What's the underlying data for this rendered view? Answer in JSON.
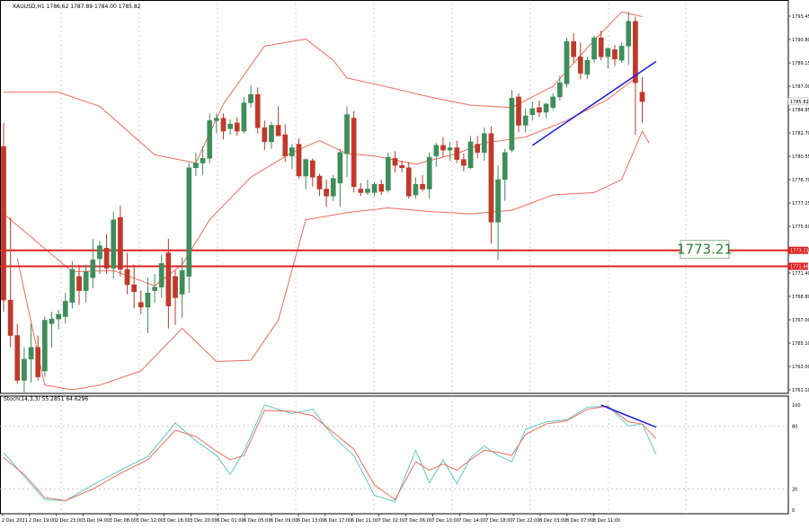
{
  "header": {
    "symbol_info": "XAUUSD,H1  1786.62 1787.89 1784.00 1785.82"
  },
  "stoch_header": {
    "text": "Stoch(14,3,3) 55.2851 64.6296"
  },
  "price_axis": {
    "labels": [
      "1793.45",
      "1790.80",
      "1789.15",
      "1787.00",
      "1784.85",
      "1782.70",
      "1780.55",
      "1778.70",
      "1777.25",
      "1775.60",
      "1773.00",
      "1771.40",
      "1768.80",
      "1767.00",
      "1765.10",
      "1763.00",
      "1761.10"
    ]
  },
  "current_price_label": "1785.82",
  "levels": [
    {
      "label": "1773.21",
      "axis_label": "1773.21"
    },
    {
      "label": "",
      "axis_label": "1771.86"
    }
  ],
  "stoch_axis": {
    "labels": [
      "100",
      "80",
      "20",
      "0"
    ]
  },
  "time_axis": {
    "labels": [
      "2 Dec 2021",
      "2 Dec 19:00",
      "2 Dec 23:00",
      "3 Dec 04:00",
      "3 Dec 08:00",
      "3 Dec 12:00",
      "3 Dec 16:00",
      "3 Dec 20:00",
      "6 Dec 01:00",
      "6 Dec 05:00",
      "6 Dec 09:00",
      "6 Dec 13:00",
      "6 Dec 17:00",
      "6 Dec 21:00",
      "7 Dec 02:00",
      "7 Dec 06:00",
      "7 Dec 10:00",
      "7 Dec 14:00",
      "7 Dec 18:00",
      "7 Dec 22:00",
      "8 Dec 03:00",
      "8 Dec 07:00",
      "8 Dec 11:00"
    ]
  },
  "colors": {
    "bull": "#3f8d5a",
    "bear": "#c0392b",
    "band": "#f06b5b",
    "level": "#e02020",
    "trend": "#1a1ae6",
    "stoch_main": "#5cc8c8",
    "stoch_signal": "#f06b5b",
    "level_box_text": "#2e7d32"
  },
  "chart_data": {
    "type": "candlestick",
    "title": "XAUUSD,H1",
    "ylim": [
      1761.1,
      1794.1
    ],
    "candles": [
      {
        "o": 1782,
        "h": 1784,
        "l": 1768,
        "c": 1769
      },
      {
        "o": 1769,
        "h": 1776,
        "l": 1765,
        "c": 1766
      },
      {
        "o": 1766,
        "h": 1767,
        "l": 1761.9,
        "c": 1762.2
      },
      {
        "o": 1762.2,
        "h": 1765,
        "l": 1761.2,
        "c": 1764
      },
      {
        "o": 1764,
        "h": 1767,
        "l": 1762,
        "c": 1765
      },
      {
        "o": 1765,
        "h": 1766,
        "l": 1762.2,
        "c": 1762.5
      },
      {
        "o": 1763,
        "h": 1767.6,
        "l": 1762.5,
        "c": 1767.3
      },
      {
        "o": 1767,
        "h": 1768,
        "l": 1765,
        "c": 1767.4
      },
      {
        "o": 1767.4,
        "h": 1768.2,
        "l": 1766.5,
        "c": 1767.8
      },
      {
        "o": 1767.6,
        "h": 1769.6,
        "l": 1767,
        "c": 1768.9
      },
      {
        "o": 1768.8,
        "h": 1772.3,
        "l": 1768.3,
        "c": 1771.6
      },
      {
        "o": 1771,
        "h": 1772,
        "l": 1768.6,
        "c": 1769.8
      },
      {
        "o": 1769.8,
        "h": 1772,
        "l": 1768.8,
        "c": 1771.4
      },
      {
        "o": 1770.9,
        "h": 1774.2,
        "l": 1770,
        "c": 1772.4
      },
      {
        "o": 1772.5,
        "h": 1774,
        "l": 1771.2,
        "c": 1773.6
      },
      {
        "o": 1773.4,
        "h": 1774.6,
        "l": 1771.2,
        "c": 1771.7
      },
      {
        "o": 1771.7,
        "h": 1776.5,
        "l": 1770.8,
        "c": 1775.8
      },
      {
        "o": 1776,
        "h": 1777,
        "l": 1771,
        "c": 1771.6
      },
      {
        "o": 1771.6,
        "h": 1773,
        "l": 1769.5,
        "c": 1770.3
      },
      {
        "o": 1770.3,
        "h": 1772,
        "l": 1768.3,
        "c": 1769.7
      },
      {
        "o": 1768.8,
        "h": 1769.8,
        "l": 1767.8,
        "c": 1768.4
      },
      {
        "o": 1768.4,
        "h": 1770.9,
        "l": 1766.2,
        "c": 1769.6
      },
      {
        "o": 1769.8,
        "h": 1771.2,
        "l": 1768.8,
        "c": 1770.1
      },
      {
        "o": 1770.1,
        "h": 1772.8,
        "l": 1769.2,
        "c": 1772.1
      },
      {
        "o": 1773,
        "h": 1774.2,
        "l": 1766.6,
        "c": 1768.5
      },
      {
        "o": 1771,
        "h": 1771.5,
        "l": 1766.9,
        "c": 1769.2
      },
      {
        "o": 1769.5,
        "h": 1772.6,
        "l": 1767.5,
        "c": 1771.5
      },
      {
        "o": 1771,
        "h": 1780.6,
        "l": 1769.6,
        "c": 1780.2
      },
      {
        "o": 1780.2,
        "h": 1781.5,
        "l": 1779.5,
        "c": 1780.6
      },
      {
        "o": 1780.6,
        "h": 1782,
        "l": 1779.6,
        "c": 1781
      },
      {
        "o": 1781,
        "h": 1784.8,
        "l": 1780.6,
        "c": 1784.2
      },
      {
        "o": 1784.2,
        "h": 1784.8,
        "l": 1783.1,
        "c": 1784.4
      },
      {
        "o": 1784.4,
        "h": 1784.8,
        "l": 1782.6,
        "c": 1783.3
      },
      {
        "o": 1783.5,
        "h": 1784.3,
        "l": 1783,
        "c": 1783.9
      },
      {
        "o": 1784,
        "h": 1784.5,
        "l": 1782.9,
        "c": 1783.3
      },
      {
        "o": 1783.3,
        "h": 1786.2,
        "l": 1783.1,
        "c": 1785.7
      },
      {
        "o": 1785.7,
        "h": 1787.2,
        "l": 1785.3,
        "c": 1786.4
      },
      {
        "o": 1786.4,
        "h": 1787,
        "l": 1783.1,
        "c": 1783.6
      },
      {
        "o": 1783.6,
        "h": 1784.2,
        "l": 1781.7,
        "c": 1782.4
      },
      {
        "o": 1782.4,
        "h": 1784.1,
        "l": 1781.8,
        "c": 1783.8
      },
      {
        "o": 1783.8,
        "h": 1785.4,
        "l": 1782.9,
        "c": 1782.9
      },
      {
        "o": 1783,
        "h": 1783.9,
        "l": 1780.7,
        "c": 1781.2
      },
      {
        "o": 1781.2,
        "h": 1782.2,
        "l": 1780.1,
        "c": 1781.9
      },
      {
        "o": 1782.2,
        "h": 1782.7,
        "l": 1779.3,
        "c": 1779.5
      },
      {
        "o": 1779.5,
        "h": 1781,
        "l": 1778.4,
        "c": 1780.9
      },
      {
        "o": 1780.8,
        "h": 1781,
        "l": 1778.6,
        "c": 1779.4
      },
      {
        "o": 1779.5,
        "h": 1779.7,
        "l": 1777.8,
        "c": 1778.4
      },
      {
        "o": 1778.4,
        "h": 1779.2,
        "l": 1776.9,
        "c": 1777.8
      },
      {
        "o": 1777.8,
        "h": 1779.6,
        "l": 1777.4,
        "c": 1779.3
      },
      {
        "o": 1778.9,
        "h": 1781.8,
        "l": 1776.9,
        "c": 1781.5
      },
      {
        "o": 1781.4,
        "h": 1785.4,
        "l": 1779.4,
        "c": 1784.7
      },
      {
        "o": 1784.4,
        "h": 1785,
        "l": 1778.1,
        "c": 1778.6
      },
      {
        "o": 1778.4,
        "h": 1778.9,
        "l": 1777.8,
        "c": 1778.1
      },
      {
        "o": 1778.1,
        "h": 1779.2,
        "l": 1777.9,
        "c": 1778.4
      },
      {
        "o": 1778.1,
        "h": 1779,
        "l": 1777.8,
        "c": 1778.8
      },
      {
        "o": 1778.8,
        "h": 1779.2,
        "l": 1777.9,
        "c": 1778.2
      },
      {
        "o": 1778.3,
        "h": 1781.5,
        "l": 1778.1,
        "c": 1781.1
      },
      {
        "o": 1781,
        "h": 1781.6,
        "l": 1779.8,
        "c": 1780.4
      },
      {
        "o": 1780.4,
        "h": 1780.8,
        "l": 1779.8,
        "c": 1780.2
      },
      {
        "o": 1780.2,
        "h": 1780.7,
        "l": 1777.6,
        "c": 1777.8
      },
      {
        "o": 1777.9,
        "h": 1779.4,
        "l": 1777.6,
        "c": 1778.8
      },
      {
        "o": 1778.8,
        "h": 1779.6,
        "l": 1778.2,
        "c": 1778.4
      },
      {
        "o": 1778.4,
        "h": 1781.5,
        "l": 1777.6,
        "c": 1781.1
      },
      {
        "o": 1781.2,
        "h": 1782.3,
        "l": 1780.3,
        "c": 1782.1
      },
      {
        "o": 1782.1,
        "h": 1782.8,
        "l": 1781.1,
        "c": 1781.7
      },
      {
        "o": 1781.7,
        "h": 1782.4,
        "l": 1780.8,
        "c": 1781.9
      },
      {
        "o": 1781.9,
        "h": 1782.5,
        "l": 1780.6,
        "c": 1780.9
      },
      {
        "o": 1780.9,
        "h": 1781.4,
        "l": 1779.9,
        "c": 1780.4
      },
      {
        "o": 1780.2,
        "h": 1782.9,
        "l": 1780.1,
        "c": 1782.4
      },
      {
        "o": 1782.2,
        "h": 1782.9,
        "l": 1781,
        "c": 1781.5
      },
      {
        "o": 1781.5,
        "h": 1783.6,
        "l": 1780.8,
        "c": 1783.1
      },
      {
        "o": 1783.1,
        "h": 1783.7,
        "l": 1773.8,
        "c": 1775.6
      },
      {
        "o": 1775.6,
        "h": 1780.4,
        "l": 1772.4,
        "c": 1779.2
      },
      {
        "o": 1779.2,
        "h": 1781.8,
        "l": 1777.4,
        "c": 1781.5
      },
      {
        "o": 1781.7,
        "h": 1786.8,
        "l": 1781.5,
        "c": 1786.1
      },
      {
        "o": 1786.2,
        "h": 1786.5,
        "l": 1783.2,
        "c": 1783.8
      },
      {
        "o": 1783.8,
        "h": 1785.2,
        "l": 1783.2,
        "c": 1784.6
      },
      {
        "o": 1784.7,
        "h": 1785.8,
        "l": 1784.2,
        "c": 1785.2
      },
      {
        "o": 1785.3,
        "h": 1785.9,
        "l": 1784.5,
        "c": 1784.9
      },
      {
        "o": 1784.9,
        "h": 1785.7,
        "l": 1784.4,
        "c": 1785.6
      },
      {
        "o": 1785.3,
        "h": 1786.5,
        "l": 1785.1,
        "c": 1786.2
      },
      {
        "o": 1786.2,
        "h": 1788,
        "l": 1785.9,
        "c": 1787.4
      },
      {
        "o": 1787.3,
        "h": 1791.2,
        "l": 1787,
        "c": 1790.9
      },
      {
        "o": 1790.9,
        "h": 1791.6,
        "l": 1789.1,
        "c": 1789.6
      },
      {
        "o": 1789.6,
        "h": 1790.8,
        "l": 1787.7,
        "c": 1788.2
      },
      {
        "o": 1788.1,
        "h": 1789.6,
        "l": 1787.7,
        "c": 1789.3
      },
      {
        "o": 1789.4,
        "h": 1791.4,
        "l": 1789.1,
        "c": 1791.2
      },
      {
        "o": 1791.2,
        "h": 1791.8,
        "l": 1789.3,
        "c": 1789.6
      },
      {
        "o": 1789.6,
        "h": 1790.4,
        "l": 1788.6,
        "c": 1790.3
      },
      {
        "o": 1790.2,
        "h": 1790.6,
        "l": 1788.8,
        "c": 1789.4
      },
      {
        "o": 1789.3,
        "h": 1790.8,
        "l": 1789.1,
        "c": 1790.5
      },
      {
        "o": 1790.5,
        "h": 1793.4,
        "l": 1788.9,
        "c": 1792.6
      },
      {
        "o": 1792.6,
        "h": 1793,
        "l": 1783,
        "c": 1787.4
      },
      {
        "o": 1786.6,
        "h": 1787.9,
        "l": 1784,
        "c": 1785.8
      }
    ],
    "bollinger": {
      "upper": [
        [
          0,
          1786.6
        ],
        [
          8,
          1786.6
        ],
        [
          14,
          1785.4
        ],
        [
          22,
          1781.3
        ],
        [
          28,
          1780.6
        ],
        [
          32,
          1785.6
        ],
        [
          38,
          1790.5
        ],
        [
          44,
          1791.1
        ],
        [
          48,
          1789.3
        ],
        [
          50,
          1787.8
        ],
        [
          54,
          1787.3
        ],
        [
          62,
          1786.2
        ],
        [
          68,
          1785.5
        ],
        [
          74,
          1785.3
        ],
        [
          80,
          1787.1
        ],
        [
          86,
          1791.0
        ],
        [
          90,
          1793.4
        ],
        [
          93,
          1793.0
        ]
      ],
      "middle": [
        [
          0,
          1776.3
        ],
        [
          10,
          1771.4
        ],
        [
          16,
          1771.5
        ],
        [
          22,
          1770.2
        ],
        [
          26,
          1772
        ],
        [
          30,
          1775.8
        ],
        [
          36,
          1779.4
        ],
        [
          42,
          1781.5
        ],
        [
          46,
          1782.5
        ],
        [
          50,
          1781.4
        ],
        [
          54,
          1781.2
        ],
        [
          60,
          1780.5
        ],
        [
          66,
          1781.4
        ],
        [
          70,
          1782.3
        ],
        [
          76,
          1782.8
        ],
        [
          82,
          1784.2
        ],
        [
          88,
          1786
        ],
        [
          92,
          1787.8
        ]
      ],
      "lower": [
        [
          2,
          1772.5
        ],
        [
          6,
          1761.8
        ],
        [
          10,
          1761.4
        ],
        [
          14,
          1761.8
        ],
        [
          20,
          1763.0
        ],
        [
          26,
          1766.6
        ],
        [
          31,
          1763.8
        ],
        [
          36,
          1763.9
        ],
        [
          40,
          1767.3
        ],
        [
          44,
          1775.8
        ],
        [
          50,
          1776.4
        ],
        [
          56,
          1776.8
        ],
        [
          62,
          1776.5
        ],
        [
          68,
          1776.3
        ],
        [
          74,
          1776.6
        ],
        [
          80,
          1777.9
        ],
        [
          86,
          1778.1
        ],
        [
          90,
          1779.2
        ],
        [
          93,
          1783.3
        ],
        [
          94,
          1782.3
        ]
      ]
    },
    "levels": [
      1773.21,
      1771.86
    ],
    "trendline_price": [
      [
        77,
        1782.1
      ],
      [
        95,
        1789.2
      ]
    ],
    "stochastic": {
      "ylim": [
        0,
        100
      ],
      "levels": [
        80,
        20
      ],
      "main": [
        [
          0,
          55
        ],
        [
          3,
          32
        ],
        [
          6,
          10
        ],
        [
          9,
          9
        ],
        [
          13,
          24
        ],
        [
          17,
          38
        ],
        [
          21,
          51
        ],
        [
          25,
          83
        ],
        [
          28,
          66
        ],
        [
          31,
          52
        ],
        [
          33,
          34
        ],
        [
          35,
          56
        ],
        [
          38,
          100
        ],
        [
          42,
          92
        ],
        [
          45,
          96
        ],
        [
          48,
          70
        ],
        [
          51,
          52
        ],
        [
          54,
          14
        ],
        [
          57,
          8
        ],
        [
          60,
          57
        ],
        [
          62,
          26
        ],
        [
          64,
          48
        ],
        [
          66,
          25
        ],
        [
          68,
          50
        ],
        [
          70,
          61
        ],
        [
          72,
          52
        ],
        [
          74,
          46
        ],
        [
          76,
          77
        ],
        [
          79,
          84
        ],
        [
          82,
          86
        ],
        [
          85,
          98
        ],
        [
          88,
          99
        ],
        [
          91,
          80
        ],
        [
          93,
          82
        ],
        [
          95,
          53
        ]
      ],
      "signal": [
        [
          0,
          50
        ],
        [
          3,
          34
        ],
        [
          6,
          12
        ],
        [
          9,
          9
        ],
        [
          13,
          20
        ],
        [
          17,
          35
        ],
        [
          21,
          48
        ],
        [
          25,
          76
        ],
        [
          28,
          70
        ],
        [
          31,
          56
        ],
        [
          33,
          48
        ],
        [
          35,
          52
        ],
        [
          38,
          95
        ],
        [
          42,
          94
        ],
        [
          45,
          90
        ],
        [
          48,
          74
        ],
        [
          51,
          58
        ],
        [
          54,
          24
        ],
        [
          57,
          10
        ],
        [
          60,
          46
        ],
        [
          62,
          38
        ],
        [
          64,
          44
        ],
        [
          66,
          38
        ],
        [
          68,
          48
        ],
        [
          70,
          57
        ],
        [
          72,
          55
        ],
        [
          74,
          52
        ],
        [
          76,
          72
        ],
        [
          79,
          82
        ],
        [
          82,
          85
        ],
        [
          85,
          96
        ],
        [
          88,
          99
        ],
        [
          91,
          84
        ],
        [
          93,
          82
        ],
        [
          95,
          68
        ]
      ],
      "trendline": [
        [
          87,
          100
        ],
        [
          95,
          79
        ]
      ]
    }
  }
}
